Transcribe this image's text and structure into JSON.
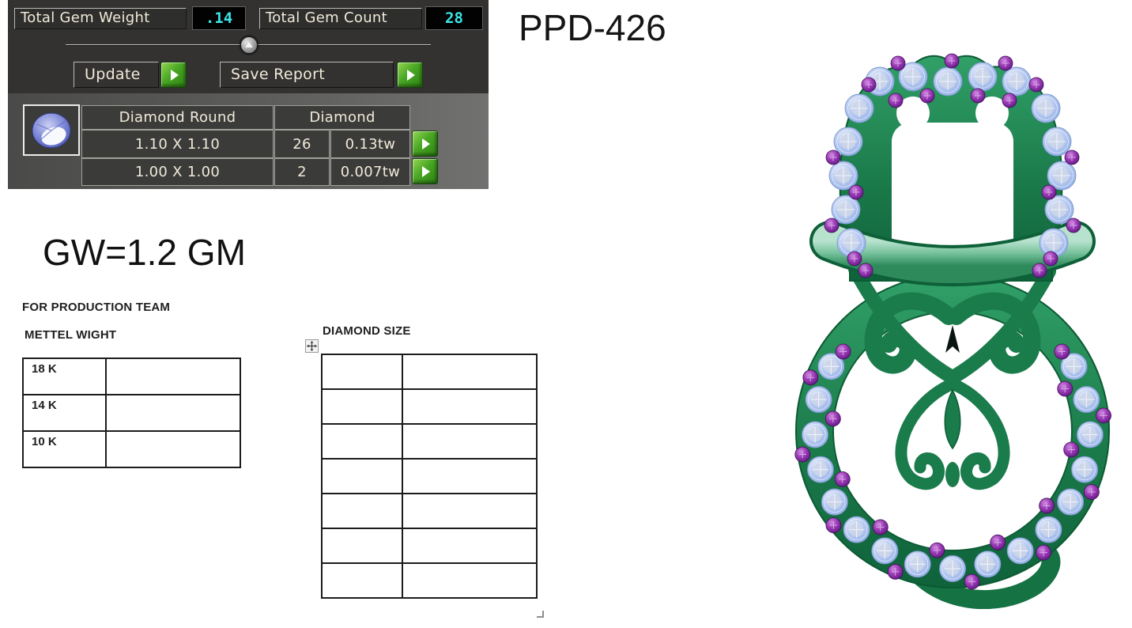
{
  "gem_report_panel": {
    "weight_label": "Total Gem Weight",
    "weight_value": ".14",
    "count_label": "Total Gem Count",
    "count_value": "28",
    "update_label": "Update",
    "save_label": "Save Report",
    "table": {
      "col1_header": "Diamond Round",
      "col2_header": "Diamond",
      "rows": [
        {
          "size": "1.10 X 1.10",
          "count": "26",
          "weight": "0.13tw"
        },
        {
          "size": "1.00 X 1.00",
          "count": "2",
          "weight": "0.007tw"
        }
      ]
    }
  },
  "annotations": {
    "design_code": "PPD-426",
    "gross_weight": "GW=1.2 GM",
    "production_team": "FOR PRODUCTION TEAM",
    "metal_weight": "METTEL WIGHT",
    "diamond_size": "DIAMOND SIZE"
  },
  "metal_weight_table": {
    "rows": [
      {
        "karat": "18 K",
        "value": ""
      },
      {
        "karat": "14 K",
        "value": ""
      },
      {
        "karat": "10 K",
        "value": ""
      }
    ]
  },
  "diamond_size_table": {
    "row_count": 7,
    "column_count": 2,
    "cells": ""
  },
  "icons": {
    "run_arrow": "play-arrow",
    "slider_thumb": "up-triangle",
    "move_handle": "four-way-arrow",
    "gem_thumbnail": "round-blue-gem",
    "resize_handle": "corner-grip"
  },
  "colors": {
    "panel_bg": "#333231",
    "panel_bg_light": "#5d5d5c",
    "accent_cyan": "#3ce6e6",
    "button_green": "#49a723",
    "metal_green": "#1b7b4a",
    "band_green": "#74c09a",
    "diamond_blue": "#a9c4f0",
    "gem_purple": "#9b3cb4"
  }
}
